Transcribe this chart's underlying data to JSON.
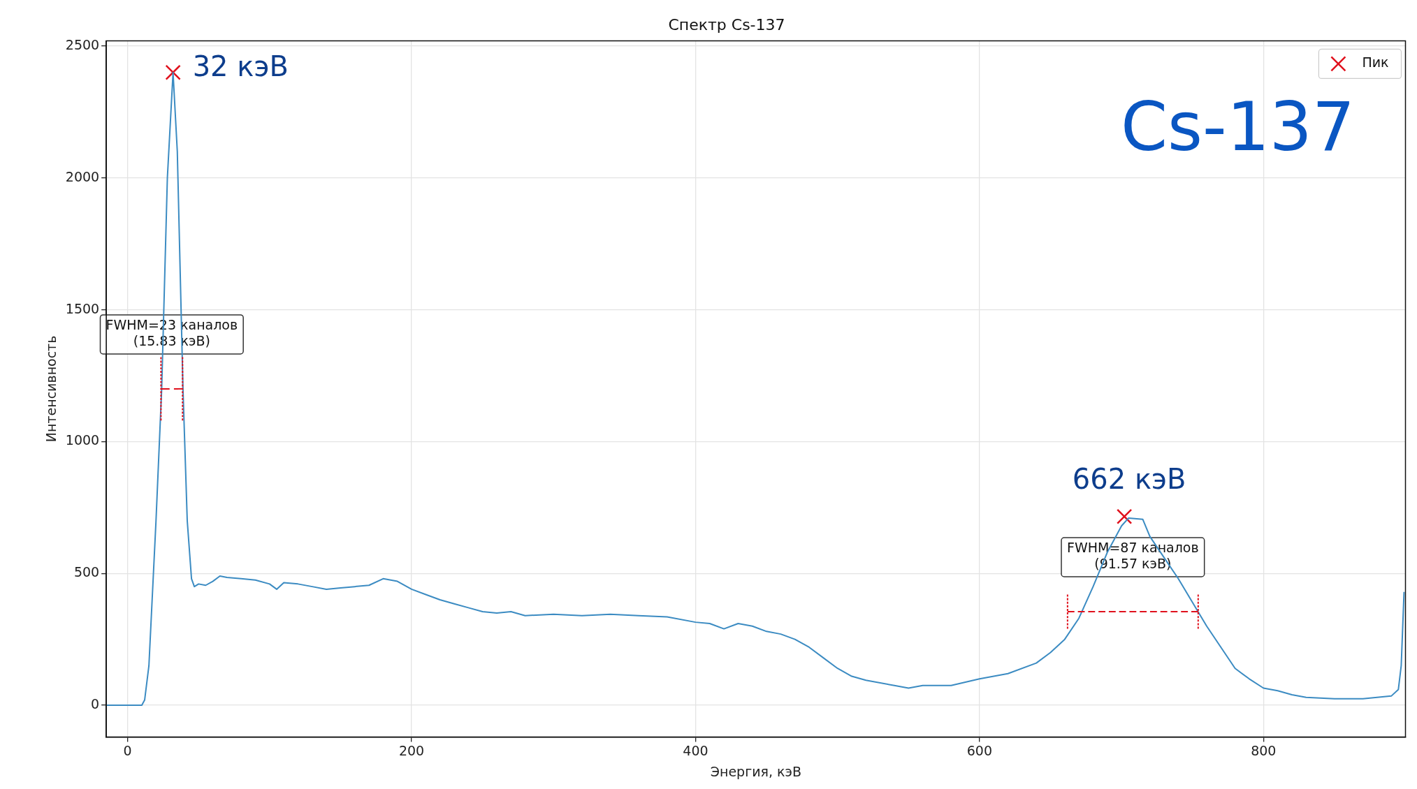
{
  "chart_data": {
    "type": "line",
    "title": "Спектр Cs-137",
    "xlabel": "Энергия, кэВ",
    "ylabel": "Интенсивность",
    "xlim": [
      -15,
      900
    ],
    "ylim": [
      -120,
      2520
    ],
    "xticks": [
      0,
      200,
      400,
      600,
      800
    ],
    "yticks": [
      0,
      500,
      1000,
      1500,
      2000,
      2500
    ],
    "grid": true,
    "legend": "top right",
    "series": [
      {
        "color": "#3b8bc2",
        "marker": "none",
        "x": [
          -15,
          10,
          12,
          15,
          20,
          24,
          28,
          32,
          35,
          39,
          42,
          45,
          47,
          50,
          55,
          60,
          65,
          70,
          80,
          90,
          100,
          105,
          110,
          120,
          130,
          140,
          150,
          160,
          170,
          180,
          190,
          200,
          210,
          220,
          230,
          240,
          250,
          260,
          270,
          280,
          300,
          320,
          340,
          360,
          380,
          400,
          410,
          420,
          430,
          440,
          450,
          460,
          470,
          480,
          490,
          500,
          510,
          520,
          540,
          550,
          560,
          580,
          600,
          620,
          640,
          650,
          660,
          670,
          680,
          690,
          700,
          705,
          715,
          720,
          730,
          740,
          750,
          760,
          770,
          780,
          790,
          800,
          810,
          820,
          830,
          850,
          870,
          890,
          895,
          897,
          899
        ],
        "values": [
          0,
          0,
          20,
          150,
          700,
          1200,
          2000,
          2400,
          2100,
          1200,
          700,
          480,
          450,
          460,
          455,
          470,
          490,
          485,
          480,
          475,
          460,
          440,
          465,
          460,
          450,
          440,
          445,
          450,
          455,
          480,
          470,
          440,
          420,
          400,
          385,
          370,
          355,
          350,
          355,
          340,
          345,
          340,
          345,
          340,
          335,
          315,
          310,
          290,
          310,
          300,
          280,
          270,
          250,
          220,
          180,
          140,
          110,
          95,
          75,
          65,
          75,
          75,
          100,
          120,
          160,
          200,
          250,
          330,
          450,
          580,
          680,
          710,
          705,
          640,
          560,
          480,
          390,
          300,
          220,
          140,
          100,
          65,
          55,
          40,
          30,
          25,
          25,
          35,
          60,
          150,
          430
        ]
      },
      {
        "type": "line",
        "color": "#e0101c",
        "marker": "none",
        "line_style": "dashed",
        "x": [
          23.5,
          38.7
        ],
        "values": [
          1200,
          1200
        ]
      },
      {
        "type": "line",
        "color": "#e0101c",
        "marker": "none",
        "line_style": "dotted",
        "x": [
          23.5,
          23.5
        ],
        "values": [
          1080,
          1320
        ]
      },
      {
        "type": "line",
        "color": "#e0101c",
        "marker": "none",
        "line_style": "dotted",
        "x": [
          38.7,
          38.7
        ],
        "values": [
          1080,
          1320
        ]
      },
      {
        "type": "line",
        "color": "#e0101c",
        "marker": "none",
        "line_style": "dashed",
        "x": [
          662,
          754
        ],
        "values": [
          355,
          355
        ]
      },
      {
        "type": "line",
        "color": "#e0101c",
        "marker": "none",
        "line_style": "dotted",
        "x": [
          662,
          662
        ],
        "values": [
          290,
          420
        ]
      },
      {
        "type": "line",
        "color": "#e0101c",
        "marker": "none",
        "line_style": "dotted",
        "x": [
          754,
          754
        ],
        "values": [
          290,
          420
        ]
      },
      {
        "type": "scatter",
        "name": "Пик",
        "color": "#e0101c",
        "marker": "cross",
        "x": [
          32,
          702
        ],
        "values": [
          2400,
          716
        ]
      }
    ],
    "annotations": [
      {
        "text": "32 кэВ",
        "x": 32,
        "y": 2400
      },
      {
        "text": "662 кэВ",
        "x": 702,
        "y": 716
      },
      "FWHM=23 каналов\n(15.83 кэВ)",
      "FWHM=87 каналов\n(91.57 кэВ)",
      "Cs-137"
    ]
  }
}
